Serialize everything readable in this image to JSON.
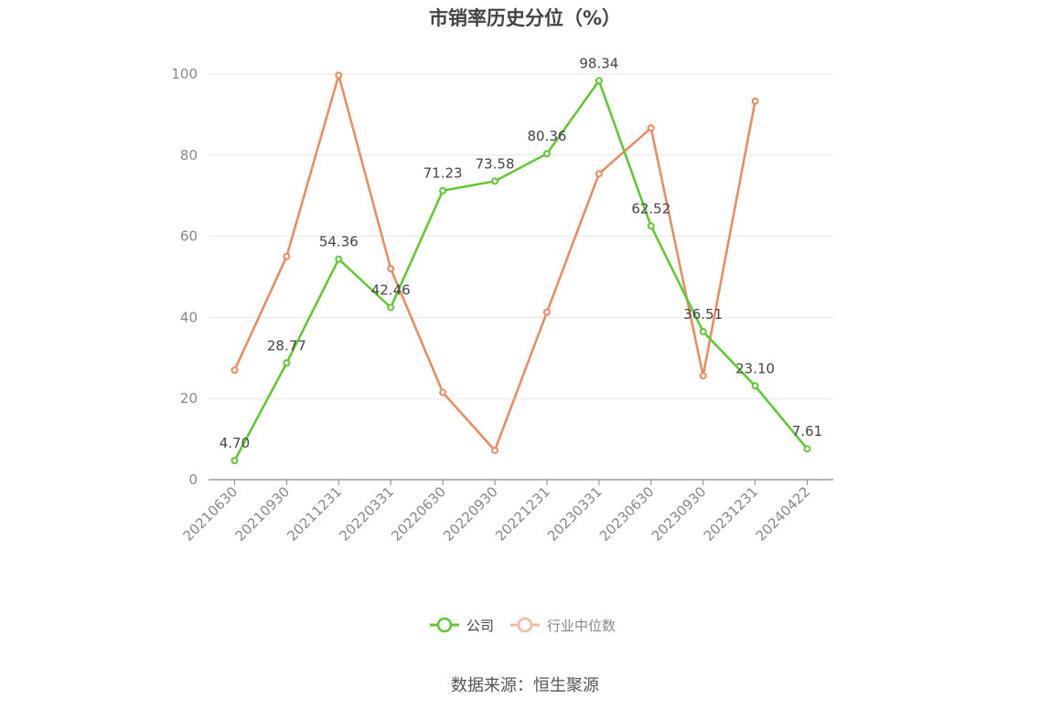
{
  "chart_data": {
    "type": "line",
    "title": "市销率历史分位（%）",
    "categories": [
      "20210630",
      "20210930",
      "20211231",
      "20220331",
      "20220630",
      "20220930",
      "20221231",
      "20230331",
      "20230630",
      "20230930",
      "20231231",
      "20240422"
    ],
    "series": [
      {
        "name": "公司",
        "color": "#5cc92c",
        "values": [
          4.7,
          28.77,
          54.36,
          42.46,
          71.23,
          73.58,
          80.36,
          98.34,
          62.52,
          36.51,
          23.1,
          7.61
        ],
        "labels": [
          "4.70",
          "28.77",
          "54.36",
          "42.46",
          "71.23",
          "73.58",
          "80.36",
          "98.34",
          "62.52",
          "36.51",
          "23.10",
          "7.61"
        ]
      },
      {
        "name": "行业中位数",
        "color": "#f0895a",
        "values": [
          27,
          55,
          99.7,
          52,
          21.5,
          7.2,
          41.3,
          75.4,
          86.7,
          25.6,
          93.3,
          null
        ]
      }
    ],
    "ylim": [
      0,
      100
    ],
    "yticks": [
      0,
      20,
      40,
      60,
      80,
      100
    ],
    "grid": true,
    "legend_position": "bottom"
  },
  "source": "数据来源：恒生聚源",
  "colors": {
    "grid": "#e6e6e6",
    "axis": "#888888",
    "legend_inactive": "#f5b9a0"
  }
}
